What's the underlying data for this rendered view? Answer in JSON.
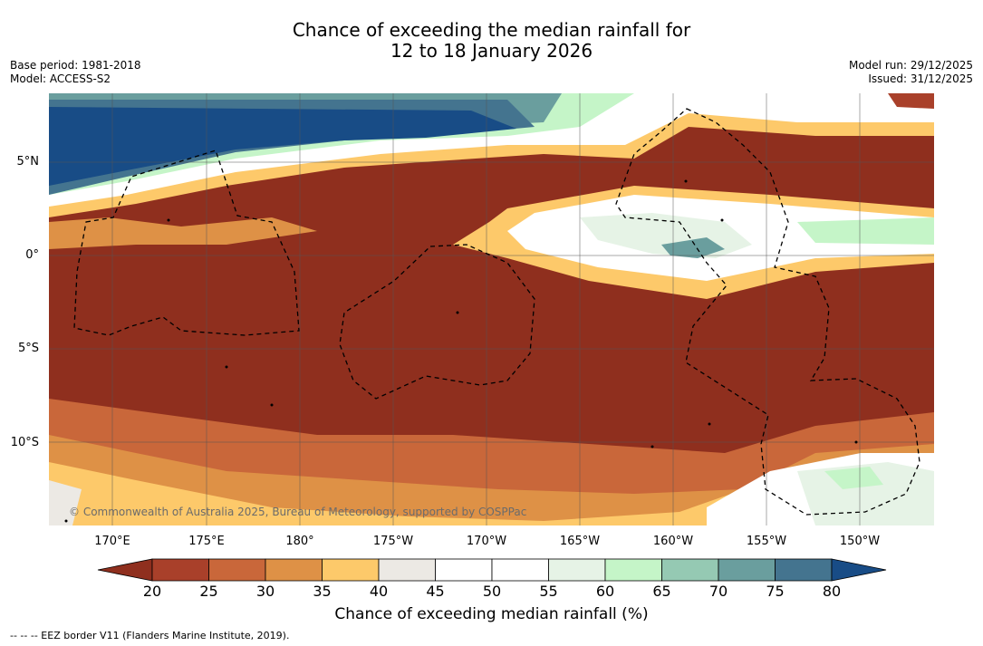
{
  "title": {
    "line1": "Chance of exceeding the median rainfall for",
    "line2": "12 to 18 January 2026"
  },
  "meta": {
    "base_period": "Base period: 1981-2018",
    "model": "Model: ACCESS-S2",
    "model_run": "Model run: 29/12/2025",
    "issued": "Issued: 31/12/2025"
  },
  "map": {
    "lat_labels": [
      "5°N",
      "0°",
      "5°S",
      "10°S"
    ],
    "lon_labels": [
      "170°E",
      "175°E",
      "180°",
      "175°W",
      "170°W",
      "165°W",
      "160°W",
      "155°W",
      "150°W"
    ],
    "copyright": "© Commonwealth of Australia 2025, Bureau of Meteorology, supported by COSPPac"
  },
  "colorbar": {
    "ticks": [
      "20",
      "25",
      "30",
      "35",
      "40",
      "45",
      "50",
      "55",
      "60",
      "65",
      "70",
      "75",
      "80"
    ],
    "colors": [
      "#8f2f1e",
      "#a9402a",
      "#c9673a",
      "#de9146",
      "#fdc96a",
      "#ece9e4",
      "#ffffff",
      "#ffffff",
      "#e6f3e6",
      "#c5f5c8",
      "#95c9b3",
      "#6a9e9e",
      "#44748f",
      "#184c86"
    ],
    "label": "Chance of exceeding median rainfall (%)"
  },
  "footnote": "--  --  -- EEZ border V11 (Flanders Marine Institute, 2019)."
}
